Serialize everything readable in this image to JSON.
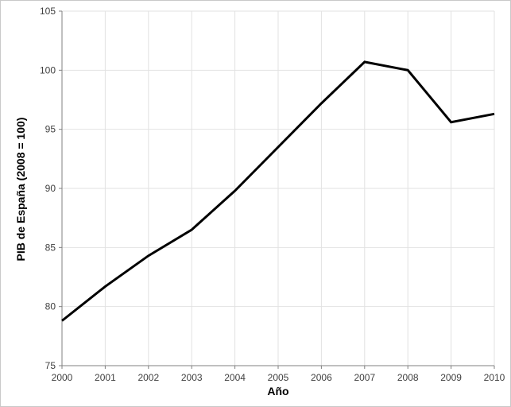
{
  "chart_data": {
    "type": "line",
    "title": "",
    "xlabel": "Año",
    "ylabel": "PIB de España (2008 = 100)",
    "x": [
      2000,
      2001,
      2002,
      2003,
      2004,
      2005,
      2006,
      2007,
      2008,
      2009,
      2010
    ],
    "values": [
      78.8,
      81.7,
      84.3,
      86.5,
      89.8,
      93.5,
      97.2,
      100.7,
      100.0,
      95.6,
      96.3
    ],
    "series": [
      {
        "name": "PIB de España (2008 = 100)",
        "values": [
          78.8,
          81.7,
          84.3,
          86.5,
          89.8,
          93.5,
          97.2,
          100.7,
          100.0,
          95.6,
          96.3
        ]
      }
    ],
    "xlim": [
      2000,
      2010
    ],
    "ylim": [
      75,
      105
    ],
    "xticks": [
      2000,
      2001,
      2002,
      2003,
      2004,
      2005,
      2006,
      2007,
      2008,
      2009,
      2010
    ],
    "yticks": [
      75,
      80,
      85,
      90,
      95,
      100,
      105
    ],
    "grid": true,
    "legend": false,
    "colors": {
      "line": "#000000",
      "grid": "#e2e2e2",
      "axis": "#808080",
      "tick_label": "#404040",
      "axis_title": "#000000",
      "background": "#ffffff"
    },
    "line_width": 3
  }
}
